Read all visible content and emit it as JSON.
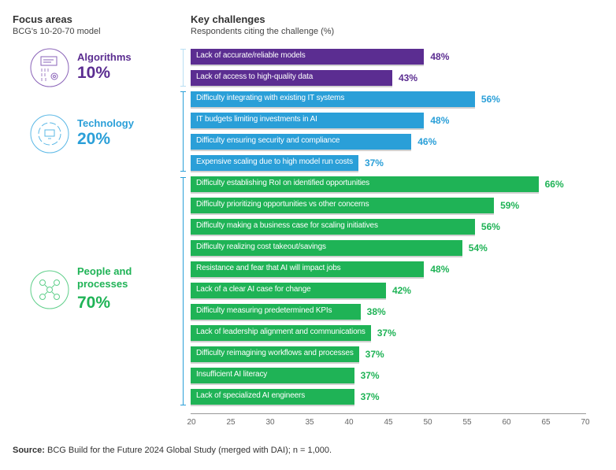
{
  "left_header": {
    "title": "Focus areas",
    "subtitle": "BCG's 10-20-70 model"
  },
  "right_header": {
    "title": "Key challenges",
    "subtitle": "Respondents citing the challenge (%)"
  },
  "focus_areas": [
    {
      "name": "Algorithms",
      "pct": "10%",
      "color": "#5b2d91",
      "icon": "algorithm-code-gear-icon"
    },
    {
      "name": "Technology",
      "pct": "20%",
      "color": "#2a9fd8",
      "icon": "monitor-cycle-icon"
    },
    {
      "name": "People and processes",
      "pct": "70%",
      "color": "#1fb356",
      "icon": "people-network-icon"
    }
  ],
  "source": {
    "label": "Source:",
    "text": "BCG Build for the Future 2024 Global Study (merged with DAI); n = 1,000."
  },
  "chart_data": {
    "type": "bar",
    "orientation": "horizontal",
    "title": "Key challenges",
    "subtitle": "Respondents citing the challenge (%)",
    "xlim": [
      20,
      70
    ],
    "xticks": [
      "20",
      "25",
      "30",
      "35",
      "40",
      "45",
      "50",
      "55",
      "60",
      "65",
      "70"
    ],
    "grid": false,
    "colors": {
      "Algorithms": "#5b2d91",
      "Technology": "#2a9fd8",
      "People and processes": "#1fb356"
    },
    "bars": [
      {
        "group": "Algorithms",
        "label": "Lack of accurate/reliable models",
        "value": 48
      },
      {
        "group": "Algorithms",
        "label": "Lack of access to high-quality data",
        "value": 43
      },
      {
        "group": "Technology",
        "label": "Difficulty integrating with existing IT systems",
        "value": 56
      },
      {
        "group": "Technology",
        "label": "IT budgets limiting investments in AI",
        "value": 48
      },
      {
        "group": "Technology",
        "label": "Difficulty ensuring security and compliance",
        "value": 46
      },
      {
        "group": "Technology",
        "label": "Expensive scaling due to high model run costs",
        "value": 37
      },
      {
        "group": "People and processes",
        "label": "Difficulty establishing RoI on identified opportunities",
        "value": 66
      },
      {
        "group": "People and processes",
        "label": "Difficulty prioritizing opportunities vs other concerns",
        "value": 59
      },
      {
        "group": "People and processes",
        "label": "Difficulty making a business case for scaling initiatives",
        "value": 56
      },
      {
        "group": "People and processes",
        "label": "Difficulty realizing cost takeout/savings",
        "value": 54
      },
      {
        "group": "People and processes",
        "label": "Resistance and fear that AI will impact jobs",
        "value": 48
      },
      {
        "group": "People and processes",
        "label": "Lack of a clear AI case for change",
        "value": 42
      },
      {
        "group": "People and processes",
        "label": "Difficulty measuring predetermined KPIs",
        "value": 38
      },
      {
        "group": "People and processes",
        "label": "Lack of leadership alignment and communications",
        "value": 37
      },
      {
        "group": "People and processes",
        "label": "Difficulty reimagining workflows and processes",
        "value": 37
      },
      {
        "group": "People and processes",
        "label": "Insufficient AI literacy",
        "value": 37
      },
      {
        "group": "People and processes",
        "label": "Lack of specialized AI engineers",
        "value": 37
      }
    ]
  }
}
